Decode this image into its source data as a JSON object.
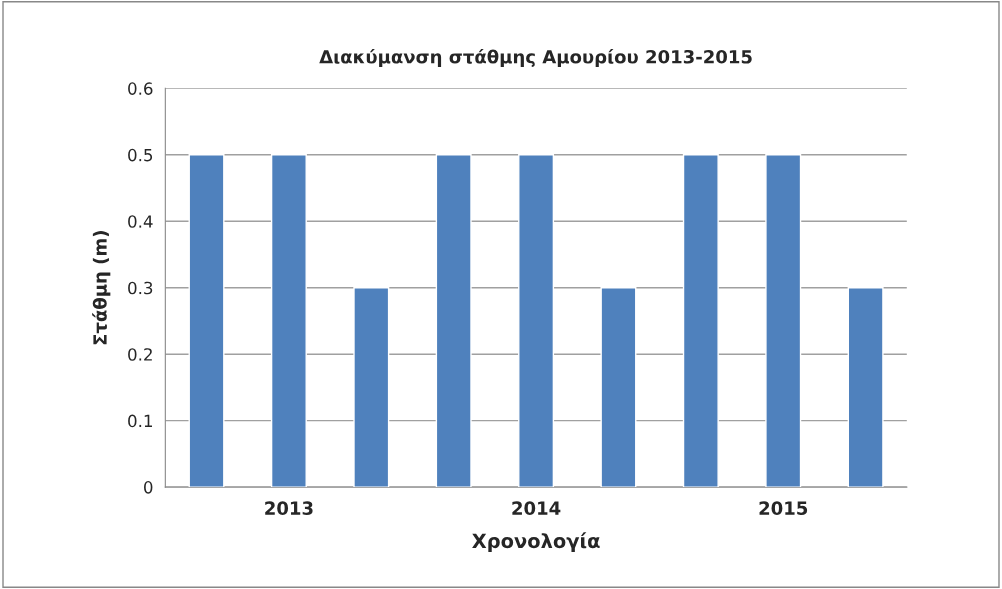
{
  "chart_data": {
    "type": "bar",
    "title": "Διακύμανση στάθμης Αμουρίου 2013-2015",
    "xlabel": "Χρονολογία",
    "ylabel": "Στάθμη (m)",
    "categories": [
      null,
      "2013",
      null,
      null,
      "2014",
      null,
      null,
      "2015",
      null
    ],
    "values": [
      0.5,
      0.5,
      0.3,
      0.5,
      0.5,
      0.3,
      0.5,
      0.5,
      0.3
    ],
    "color": "#4f81bd",
    "ylim": [
      0,
      0.6
    ],
    "yticks": [
      0,
      0.1,
      0.2,
      0.3,
      0.4,
      0.5,
      0.6
    ],
    "grid": "y",
    "legend": false
  }
}
